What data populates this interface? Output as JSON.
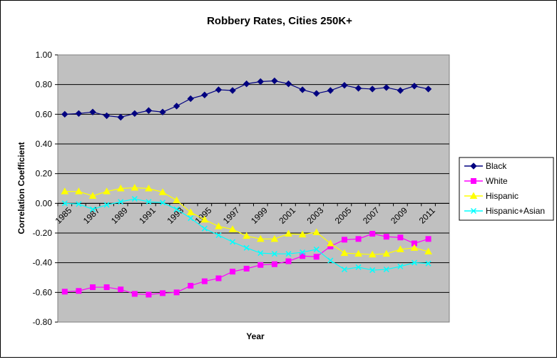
{
  "chart_data": {
    "type": "line",
    "title": "Robbery Rates, Cities 250K+",
    "xlabel": "Year",
    "ylabel": "Correlation Coefficient",
    "ylim": [
      -0.8,
      1.0
    ],
    "yticks": [
      "1.00",
      "0.80",
      "0.60",
      "0.40",
      "0.20",
      "0.00",
      "-0.20",
      "-0.40",
      "-0.60",
      "-0.80"
    ],
    "x": [
      1985,
      1986,
      1987,
      1988,
      1989,
      1990,
      1991,
      1992,
      1993,
      1994,
      1995,
      1996,
      1997,
      1998,
      1999,
      2000,
      2001,
      2002,
      2003,
      2004,
      2005,
      2006,
      2007,
      2008,
      2009,
      2010,
      2011,
      2012
    ],
    "xtick_labels": [
      "1985",
      "1987",
      "1989",
      "1991",
      "1993",
      "1995",
      "1997",
      "1999",
      "2001",
      "2003",
      "2005",
      "2007",
      "2009",
      "2011"
    ],
    "grid": true,
    "legend_position": "right",
    "series": [
      {
        "name": "Black",
        "color": "#000080",
        "marker": "diamond",
        "values": [
          0.6,
          0.605,
          0.615,
          0.59,
          0.58,
          0.605,
          0.625,
          0.615,
          0.655,
          0.705,
          0.73,
          0.765,
          0.76,
          0.805,
          0.82,
          0.825,
          0.805,
          0.765,
          0.74,
          0.76,
          0.795,
          0.775,
          0.77,
          0.78,
          0.76,
          0.79,
          0.77,
          null
        ]
      },
      {
        "name": "White",
        "color": "#ff00ff",
        "marker": "square",
        "values": [
          -0.595,
          -0.59,
          -0.565,
          -0.565,
          -0.58,
          -0.61,
          -0.615,
          -0.605,
          -0.6,
          -0.555,
          -0.525,
          -0.505,
          -0.46,
          -0.44,
          -0.415,
          -0.41,
          -0.39,
          -0.355,
          -0.36,
          -0.29,
          -0.245,
          -0.24,
          -0.205,
          -0.225,
          -0.23,
          -0.27,
          -0.24,
          null
        ]
      },
      {
        "name": "Hispanic",
        "color": "#ffff00",
        "marker": "triangle",
        "values": [
          0.08,
          0.08,
          0.05,
          0.08,
          0.1,
          0.105,
          0.1,
          0.075,
          0.02,
          -0.06,
          -0.11,
          -0.155,
          -0.175,
          -0.22,
          -0.24,
          -0.24,
          -0.205,
          -0.21,
          -0.195,
          -0.27,
          -0.335,
          -0.34,
          -0.345,
          -0.34,
          -0.31,
          -0.3,
          -0.325,
          null
        ]
      },
      {
        "name": "Hispanic+Asian",
        "color": "#00ffff",
        "marker": "x",
        "values": [
          0.0,
          -0.005,
          -0.04,
          -0.01,
          0.01,
          0.03,
          0.01,
          0.005,
          -0.04,
          -0.1,
          -0.17,
          -0.215,
          -0.26,
          -0.3,
          -0.335,
          -0.34,
          -0.34,
          -0.33,
          -0.31,
          -0.385,
          -0.445,
          -0.43,
          -0.45,
          -0.445,
          -0.425,
          -0.4,
          -0.405,
          null
        ]
      }
    ]
  }
}
